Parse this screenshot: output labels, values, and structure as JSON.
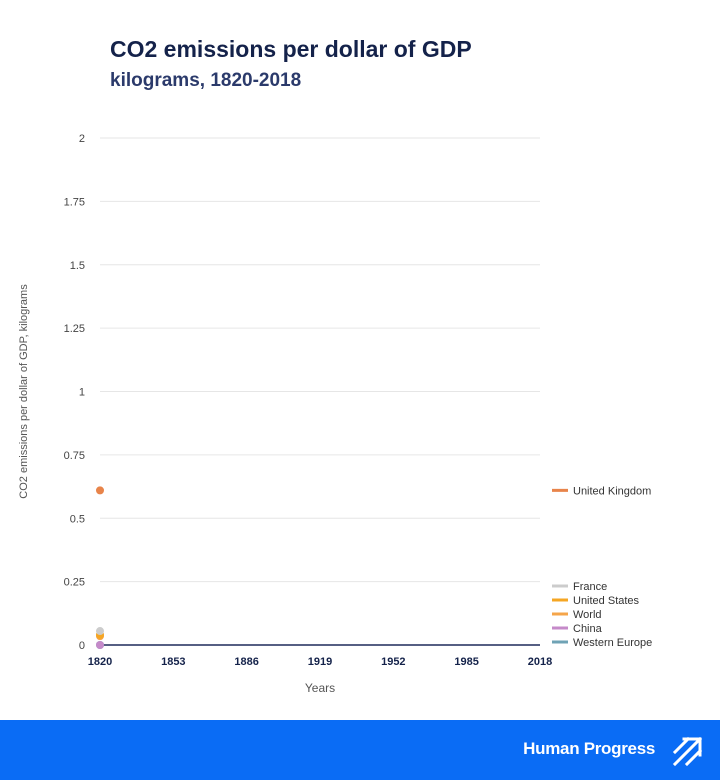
{
  "header": {
    "title": "CO2 emissions per dollar of GDP",
    "subtitle": "kilograms, 1820-2018"
  },
  "footer": {
    "brand": "Human Progress",
    "logo_icon": "human-progress-arrows-icon",
    "background": "#0a6cf5"
  },
  "chart_data": {
    "type": "line",
    "xlabel": "Years",
    "ylabel": "CO2 emissions per dollar of GDP, kilograms",
    "xlim": [
      1820,
      2018
    ],
    "ylim": [
      0,
      2
    ],
    "x_ticks": [
      "1820",
      "1853",
      "1886",
      "1919",
      "1952",
      "1985",
      "2018"
    ],
    "y_ticks": [
      "0",
      "0.25",
      "0.5",
      "0.75",
      "1",
      "1.25",
      "1.5",
      "1.75",
      "2"
    ],
    "grid": true,
    "legend_position": "right",
    "series": [
      {
        "name": "United Kingdom",
        "color": "#e8844a",
        "x": [
          1820
        ],
        "y": [
          0.61
        ]
      },
      {
        "name": "France",
        "color": "#cccccc",
        "x": [
          1820
        ],
        "y": [
          0.055
        ]
      },
      {
        "name": "United States",
        "color": "#f5a623",
        "x": [
          1820
        ],
        "y": [
          0.04
        ]
      },
      {
        "name": "China",
        "color": "#c58ac9",
        "x": [
          1820
        ],
        "y": [
          0.0
        ]
      },
      {
        "name": "Western Europe",
        "color": "#6fa3b5",
        "x": [
          1820
        ],
        "y": [
          0.0
        ]
      },
      {
        "name": "World",
        "color": "#f5a54a",
        "x": [
          1820
        ],
        "y": [
          0.035
        ]
      }
    ]
  }
}
